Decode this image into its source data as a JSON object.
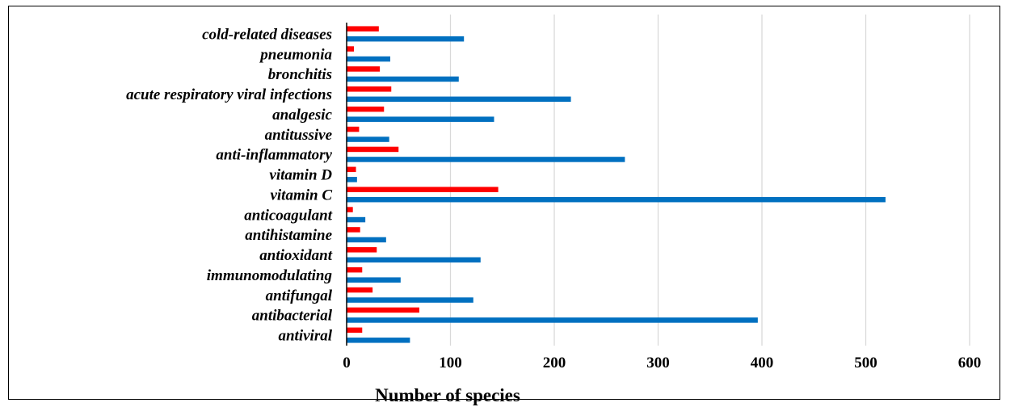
{
  "chart_data": {
    "type": "bar",
    "orientation": "horizontal",
    "categories": [
      "antiviral",
      "antibacterial",
      "antifungal",
      "immunomodulating",
      "antioxidant",
      "antihistamine",
      "anticoagulant",
      "vitamin C",
      "vitamin D",
      "anti-inflammatory",
      "antitussive",
      "analgesic",
      "acute respiratory viral infections",
      "bronchitis",
      "pneumonia",
      "cold-related diseases"
    ],
    "series": [
      {
        "color": "#0070c0",
        "values": [
          61,
          396,
          122,
          52,
          129,
          38,
          18,
          519,
          10,
          268,
          41,
          142,
          216,
          108,
          42,
          113
        ]
      },
      {
        "color": "#ff0000",
        "values": [
          15,
          70,
          25,
          15,
          29,
          13,
          6,
          146,
          9,
          50,
          12,
          36,
          43,
          32,
          7,
          31
        ]
      }
    ],
    "xlim": [
      0,
      600
    ],
    "xticks": [
      "0",
      "100",
      "200",
      "300",
      "400",
      "500",
      "600"
    ],
    "xlabel": "Number of species",
    "ylabel": "",
    "title": "",
    "grid": "vertical"
  }
}
